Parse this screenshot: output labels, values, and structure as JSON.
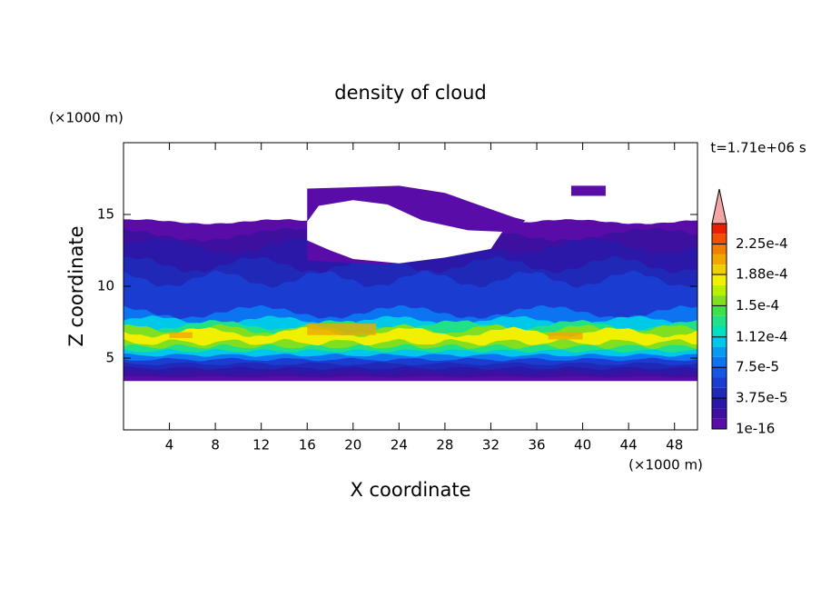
{
  "chart_data": {
    "type": "contour",
    "title": "density of cloud",
    "x_label": "X coordinate",
    "y_label": "Z coordinate",
    "x_unit": "(×1000 m)",
    "y_unit": "(×1000 m)",
    "time_label": "t=1.71e+06 s",
    "xlim": [
      0,
      50
    ],
    "xticks": [
      4,
      8,
      12,
      16,
      20,
      24,
      28,
      32,
      36,
      40,
      44,
      48
    ],
    "ylim": [
      0,
      20
    ],
    "yticks": [
      5,
      10,
      15
    ],
    "clim": [
      0,
      0.00025
    ],
    "cticks": [
      {
        "value": 1e-16,
        "label": "1e-16"
      },
      {
        "value": 3.75e-05,
        "label": "3.75e-5"
      },
      {
        "value": 7.5e-05,
        "label": "7.5e-5"
      },
      {
        "value": 0.000112,
        "label": "1.12e-4"
      },
      {
        "value": 0.00015,
        "label": "1.5e-4"
      },
      {
        "value": 0.000188,
        "label": "1.88e-4"
      },
      {
        "value": 0.000225,
        "label": "2.25e-4"
      }
    ],
    "colors": [
      "#5a0ca8",
      "#3d10a0",
      "#2c18a8",
      "#2028b8",
      "#1a3cd0",
      "#1556e4",
      "#0c74f0",
      "#089cf0",
      "#00c8e8",
      "#00e0c0",
      "#20e088",
      "#40e048",
      "#80e020",
      "#b8f000",
      "#f0f000",
      "#f0d000",
      "#f0a800",
      "#f08000",
      "#f05000",
      "#e82000"
    ],
    "over_color": "#f4a6a6"
  }
}
